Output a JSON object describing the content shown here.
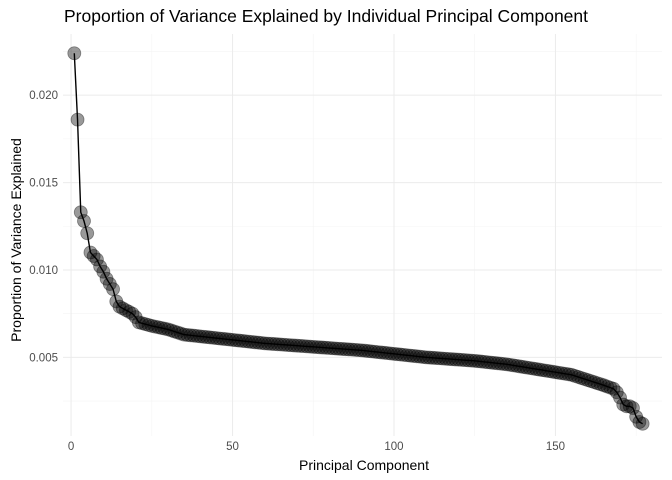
{
  "chart_data": {
    "type": "line",
    "title": "Proportion of Variance Explained by Individual Principal Component",
    "xlabel": "Principal Component",
    "ylabel": "Proportion of Variance Explained",
    "xlim": [
      -2.5,
      183
    ],
    "ylim": [
      0.0005,
      0.0235
    ],
    "x_ticks": [
      0,
      50,
      100,
      150
    ],
    "y_ticks": [
      0.005,
      0.01,
      0.015,
      0.02
    ],
    "x_tick_labels": [
      "0",
      "50",
      "100",
      "150"
    ],
    "y_tick_labels": [
      "0.005",
      "0.010",
      "0.015",
      "0.020"
    ],
    "grid": true,
    "legend": "none",
    "point_color": "#000000",
    "point_alpha": 0.4,
    "line_color": "#000000",
    "n_components": 177,
    "anchors": [
      [
        1,
        0.0224
      ],
      [
        2,
        0.0186
      ],
      [
        3,
        0.0133
      ],
      [
        4,
        0.0128
      ],
      [
        5,
        0.0121
      ],
      [
        6,
        0.011
      ],
      [
        7,
        0.0108
      ],
      [
        8,
        0.0106
      ],
      [
        9,
        0.0102
      ],
      [
        10,
        0.0099
      ],
      [
        11,
        0.0095
      ],
      [
        12,
        0.0092
      ],
      [
        13,
        0.0089
      ],
      [
        14,
        0.0082
      ],
      [
        15,
        0.0079
      ],
      [
        16,
        0.0078
      ],
      [
        17,
        0.0077
      ],
      [
        18,
        0.0076
      ],
      [
        19,
        0.0075
      ],
      [
        20,
        0.0073
      ],
      [
        21,
        0.007
      ],
      [
        25,
        0.0068
      ],
      [
        30,
        0.0066
      ],
      [
        35,
        0.0063
      ],
      [
        40,
        0.0062
      ],
      [
        50,
        0.006
      ],
      [
        60,
        0.0058
      ],
      [
        75,
        0.0056
      ],
      [
        90,
        0.0054
      ],
      [
        100,
        0.0052
      ],
      [
        110,
        0.005
      ],
      [
        125,
        0.0048
      ],
      [
        135,
        0.0046
      ],
      [
        145,
        0.0043
      ],
      [
        155,
        0.004
      ],
      [
        160,
        0.0037
      ],
      [
        165,
        0.0034
      ],
      [
        168,
        0.0032
      ],
      [
        169,
        0.003
      ],
      [
        170,
        0.0027
      ],
      [
        171,
        0.0023
      ],
      [
        172,
        0.0022
      ],
      [
        173,
        0.0022
      ],
      [
        174,
        0.0021
      ],
      [
        175,
        0.0016
      ],
      [
        176,
        0.0013
      ],
      [
        177,
        0.0012
      ]
    ]
  }
}
